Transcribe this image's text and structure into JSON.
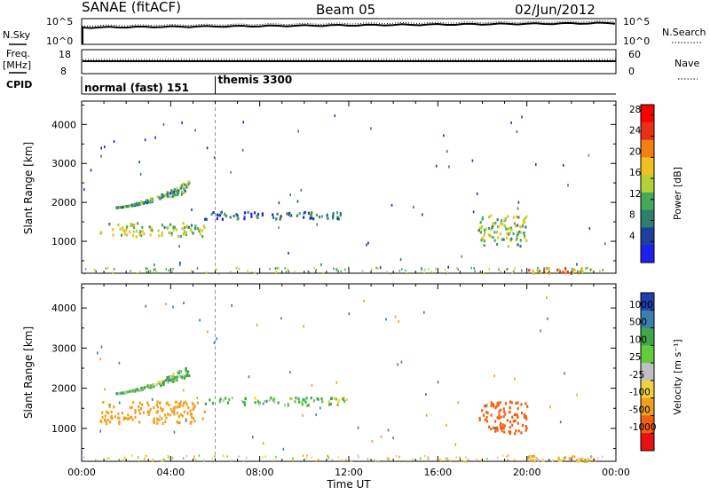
{
  "header": {
    "station": "SANAE (fitACF)",
    "beam": "Beam 05",
    "date": "02/Jun/2012"
  },
  "top_panels": {
    "nsky_label": "N.Sky",
    "nsky_ticks": [
      "10^5",
      "10^0"
    ],
    "nsearch_label": "N.Search",
    "nsearch_ticks": [
      "10^5",
      "10^0"
    ],
    "freq_label_1": "Freq.",
    "freq_label_2": "[MHz]",
    "freq_ticks": [
      "18",
      "8"
    ],
    "nave_label": "Nave",
    "nave_ticks": [
      "60",
      "0"
    ],
    "cpid_label": "CPID",
    "cpid_segments": [
      {
        "label": "normal (fast) 151",
        "start_hour": 0
      },
      {
        "label": "themis 3300",
        "start_hour": 6
      }
    ]
  },
  "chart_data": [
    {
      "type": "heatmap",
      "panel": "power",
      "ylabel": "Slant Range [km]",
      "ylim": [
        180,
        4600
      ],
      "yticks": [
        "1000",
        "2000",
        "3000",
        "4000"
      ],
      "ytick_values": [
        1000,
        2000,
        3000,
        4000
      ],
      "xlim": [
        0,
        24
      ],
      "colorbar": {
        "label": "Power [dB]",
        "ticks": [
          "4",
          "8",
          "12",
          "16",
          "20",
          "24",
          "28"
        ],
        "range": [
          0,
          30
        ]
      },
      "features": [
        {
          "name": "main echo band",
          "x": [
            0.8,
            5.5
          ],
          "y_range_km": [
            1150,
            1500
          ],
          "value": 14
        },
        {
          "name": "arc 02-04 UT",
          "x": [
            1.5,
            4.8
          ],
          "y_range_km": [
            1900,
            2600
          ],
          "value": 10
        },
        {
          "name": "band 06-12 UT",
          "x": [
            5.5,
            12.0
          ],
          "y_range_km": [
            1600,
            1800
          ],
          "value": 6
        },
        {
          "name": "echo 18-20 UT",
          "x": [
            17.8,
            20.0
          ],
          "y_range_km": [
            900,
            1700
          ],
          "value": 14
        },
        {
          "name": "near range 20-23 UT",
          "x": [
            20.0,
            23.0
          ],
          "y_range_km": [
            200,
            350
          ],
          "value": 20
        }
      ]
    },
    {
      "type": "heatmap",
      "panel": "velocity",
      "ylabel": "Slant Range [km]",
      "ylim": [
        180,
        4600
      ],
      "yticks": [
        "1000",
        "2000",
        "3000",
        "4000"
      ],
      "ytick_values": [
        1000,
        2000,
        3000,
        4000
      ],
      "xlim": [
        0,
        24
      ],
      "xticks": [
        "00:00",
        "04:00",
        "08:00",
        "12:00",
        "16:00",
        "20:00",
        "00:00"
      ],
      "xlabel": "Time UT",
      "colorbar": {
        "label": "Velocity [m s⁻¹]",
        "ticks": [
          "1000",
          "500",
          "100",
          "25",
          "-25",
          "-100",
          "-500",
          "-1000"
        ]
      },
      "features": [
        {
          "name": "main echo band",
          "x": [
            0.8,
            5.5
          ],
          "y_range_km": [
            1150,
            1700
          ],
          "value": -250
        },
        {
          "name": "arc 02-04 UT",
          "x": [
            1.5,
            4.8
          ],
          "y_range_km": [
            1900,
            2600
          ],
          "value": 100
        },
        {
          "name": "band 06-12 UT",
          "x": [
            5.5,
            12.0
          ],
          "y_range_km": [
            1600,
            1800
          ],
          "value": 100
        },
        {
          "name": "echo 18-20 UT",
          "x": [
            17.8,
            20.0
          ],
          "y_range_km": [
            900,
            1700
          ],
          "value": -700
        },
        {
          "name": "near range 20-23 UT",
          "x": [
            20.0,
            23.0
          ],
          "y_range_km": [
            200,
            350
          ],
          "value": -150
        }
      ]
    }
  ],
  "colors": {
    "power_scale": [
      "#1f1ff0",
      "#1f3f9f",
      "#2f7f6f",
      "#46a85a",
      "#b5cf3a",
      "#f0c020",
      "#f08010",
      "#e83018",
      "#ff0000"
    ],
    "velocity_scale": [
      "#1f3fb0",
      "#3a7fb0",
      "#3fa84a",
      "#63cc3a",
      "#c0c0c0",
      "#f0d040",
      "#f0a020",
      "#f06010",
      "#e81010"
    ]
  }
}
